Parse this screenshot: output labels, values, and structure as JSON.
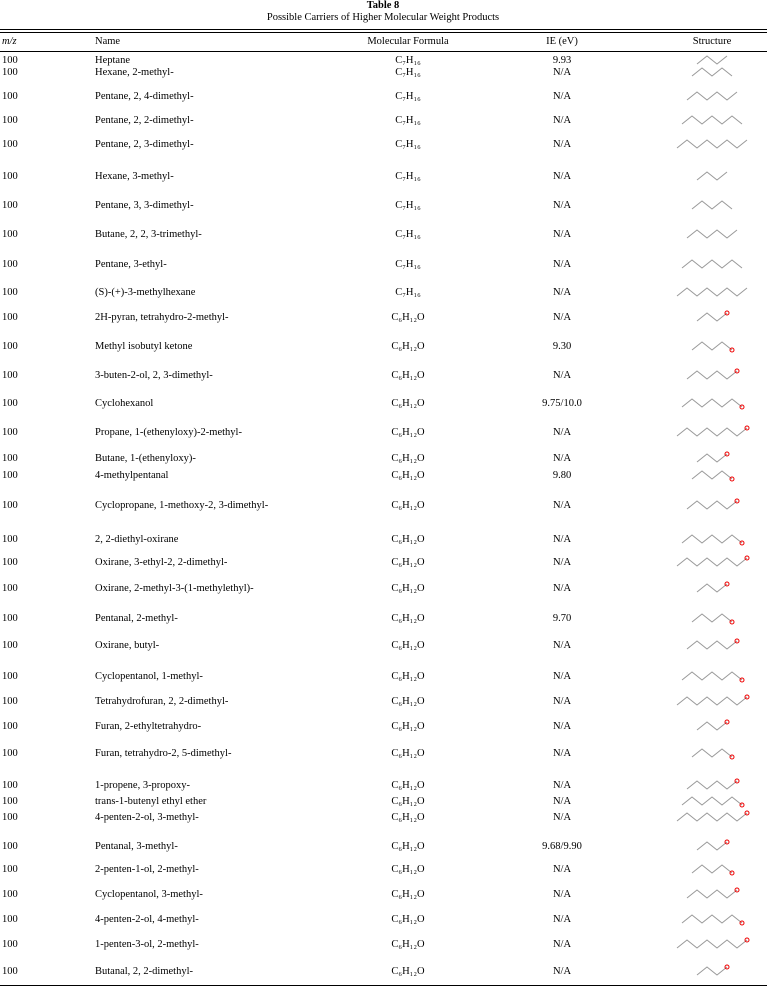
{
  "header": {
    "number": "Table 8",
    "title": "Possible Carriers of Higher Molecular Weight Products"
  },
  "table": {
    "columns": [
      "m/z",
      "Name",
      "Molecular Formula",
      "IE (eV)",
      "Structure"
    ],
    "rows": [
      [
        "100",
        "Heptane",
        "C₇H₁₆",
        "9.93"
      ],
      [
        "100",
        "Hexane, 2-methyl-",
        "C₇H₁₆",
        "N/A"
      ],
      [
        "100",
        "Pentane, 2, 4-dimethyl-",
        "C₇H₁₆",
        "N/A"
      ],
      [
        "100",
        "Pentane, 2, 2-dimethyl-",
        "C₇H₁₆",
        "N/A"
      ],
      [
        "100",
        "Pentane, 2, 3-dimethyl-",
        "C₇H₁₆",
        "N/A"
      ],
      [
        "100",
        "Hexane, 3-methyl-",
        "C₇H₁₆",
        "N/A"
      ],
      [
        "100",
        "Pentane, 3, 3-dimethyl-",
        "C₇H₁₆",
        "N/A"
      ],
      [
        "100",
        "Butane, 2, 2, 3-trimethyl-",
        "C₇H₁₆",
        "N/A"
      ],
      [
        "100",
        "Pentane, 3-ethyl-",
        "C₇H₁₆",
        "N/A"
      ],
      [
        "100",
        "(S)-(+)-3-methylhexane",
        "C₇H₁₆",
        "N/A"
      ],
      [
        "100",
        "2H-pyran, tetrahydro-2-methyl-",
        "C₆H₁₂O",
        "N/A"
      ],
      [
        "100",
        "Methyl isobutyl ketone",
        "C₆H₁₂O",
        "9.30"
      ],
      [
        "100",
        "3-buten-2-ol, 2, 3-dimethyl-",
        "C₆H₁₂O",
        "N/A"
      ],
      [
        "100",
        "Cyclohexanol",
        "C₆H₁₂O",
        "9.75/10.0"
      ],
      [
        "100",
        "Propane, 1-(ethenyloxy)-2-methyl-",
        "C₆H₁₂O",
        "N/A"
      ],
      [
        "100",
        "Butane, 1-(ethenyloxy)-",
        "C₆H₁₂O",
        "N/A"
      ],
      [
        "100",
        "4-methylpentanal",
        "C₆H₁₂O",
        "9.80"
      ],
      [
        "100",
        "Cyclopropane, 1-methoxy-2, 3-dimethyl-",
        "C₆H₁₂O",
        "N/A"
      ],
      [
        "100",
        "2, 2-diethyl-oxirane",
        "C₆H₁₂O",
        "N/A"
      ],
      [
        "100",
        "Oxirane, 3-ethyl-2, 2-dimethyl-",
        "C₆H₁₂O",
        "N/A"
      ],
      [
        "100",
        "Oxirane, 2-methyl-3-(1-methylethyl)-",
        "C₆H₁₂O",
        "N/A"
      ],
      [
        "100",
        "Pentanal, 2-methyl-",
        "C₆H₁₂O",
        "9.70"
      ],
      [
        "100",
        "Oxirane, butyl-",
        "C₆H₁₂O",
        "N/A"
      ],
      [
        "100",
        "Cyclopentanol, 1-methyl-",
        "C₆H₁₂O",
        "N/A"
      ],
      [
        "100",
        "Tetrahydrofuran, 2, 2-dimethyl-",
        "C₆H₁₂O",
        "N/A"
      ],
      [
        "100",
        "Furan, 2-ethyltetrahydro-",
        "C₆H₁₂O",
        "N/A"
      ],
      [
        "100",
        "Furan, tetrahydro-2, 5-dimethyl-",
        "C₆H₁₂O",
        "N/A"
      ],
      [
        "100",
        "1-propene, 3-propoxy-",
        "C₆H₁₂O",
        "N/A"
      ],
      [
        "100",
        "trans-1-butenyl ethyl ether",
        "C₆H₁₂O",
        "N/A"
      ],
      [
        "100",
        "4-penten-2-ol, 3-methyl-",
        "C₆H₁₂O",
        "N/A"
      ],
      [
        "100",
        "Pentanal, 3-methyl-",
        "C₆H₁₂O",
        "9.68/9.90"
      ],
      [
        "100",
        "2-penten-1-ol, 2-methyl-",
        "C₆H₁₂O",
        "N/A"
      ],
      [
        "100",
        "Cyclopentanol, 3-methyl-",
        "C₆H₁₂O",
        "N/A"
      ],
      [
        "100",
        "4-penten-2-ol, 4-methyl-",
        "C₆H₁₂O",
        "N/A"
      ],
      [
        "100",
        "1-penten-3-ol, 2-methyl-",
        "C₆H₁₂O",
        "N/A"
      ],
      [
        "100",
        "Butanal, 2, 2-dimethyl-",
        "C₆H₁₂O",
        "N/A"
      ]
    ]
  }
}
